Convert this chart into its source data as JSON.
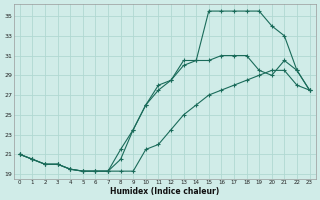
{
  "xlabel": "Humidex (Indice chaleur)",
  "bg_color": "#d0ece8",
  "grid_color": "#b0d8d2",
  "line_color": "#1a6b5a",
  "xlim": [
    -0.5,
    23.5
  ],
  "ylim": [
    18.5,
    36.2
  ],
  "xticks": [
    0,
    1,
    2,
    3,
    4,
    5,
    6,
    7,
    8,
    9,
    10,
    11,
    12,
    13,
    14,
    15,
    16,
    17,
    18,
    19,
    20,
    21,
    22,
    23
  ],
  "yticks": [
    19,
    21,
    23,
    25,
    27,
    29,
    31,
    33,
    35
  ],
  "line1_x": [
    0,
    1,
    2,
    3,
    4,
    5,
    6,
    7,
    8,
    9,
    10,
    11,
    12,
    13,
    14,
    15,
    16,
    17,
    18,
    19,
    20,
    21,
    22,
    23
  ],
  "line1_y": [
    21.0,
    20.5,
    20.0,
    20.0,
    19.5,
    19.3,
    19.3,
    19.3,
    19.3,
    19.3,
    21.5,
    22.0,
    23.5,
    25.0,
    26.0,
    27.0,
    27.5,
    28.0,
    28.5,
    29.0,
    29.5,
    29.5,
    28.0,
    27.5
  ],
  "line2_x": [
    0,
    1,
    2,
    3,
    4,
    5,
    6,
    7,
    8,
    9,
    10,
    11,
    12,
    13,
    14,
    15,
    16,
    17,
    18,
    19,
    20,
    21,
    22,
    23
  ],
  "line2_y": [
    21.0,
    20.5,
    20.0,
    20.0,
    19.5,
    19.3,
    19.3,
    19.3,
    21.5,
    23.5,
    26.0,
    27.5,
    28.5,
    30.0,
    30.5,
    30.5,
    31.0,
    31.0,
    31.0,
    29.5,
    29.0,
    30.5,
    29.5,
    27.5
  ],
  "line3_x": [
    0,
    1,
    2,
    3,
    4,
    5,
    6,
    7,
    8,
    9,
    10,
    11,
    12,
    13,
    14,
    15,
    16,
    17,
    18,
    19,
    20,
    21,
    22,
    23
  ],
  "line3_y": [
    21.0,
    20.5,
    20.0,
    20.0,
    19.5,
    19.3,
    19.3,
    19.3,
    20.5,
    23.5,
    26.0,
    28.0,
    28.5,
    30.5,
    30.5,
    35.5,
    35.5,
    35.5,
    35.5,
    35.5,
    34.0,
    33.0,
    29.5,
    27.5
  ]
}
